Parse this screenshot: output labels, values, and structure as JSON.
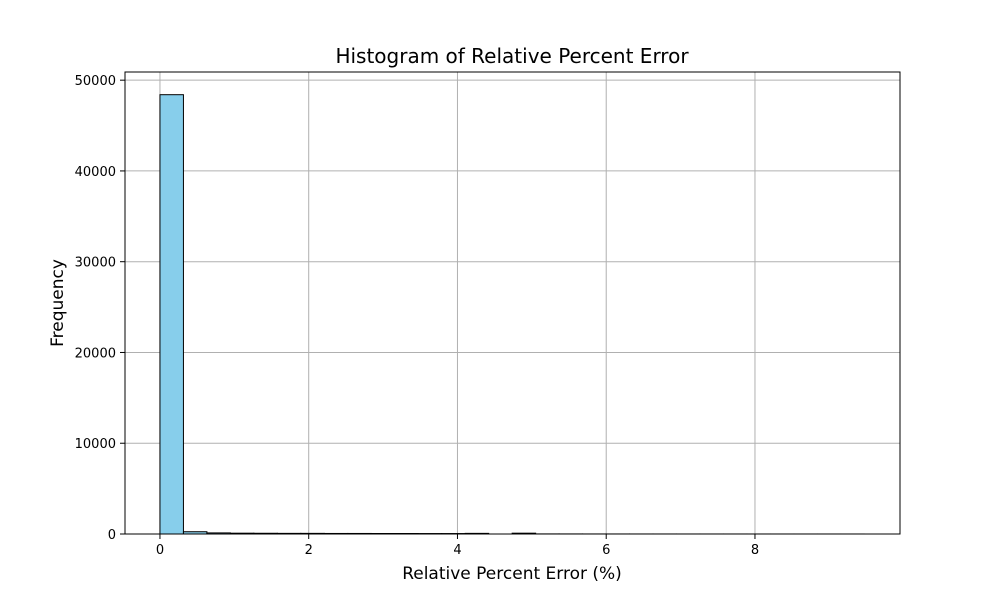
{
  "chart_data": {
    "type": "bar",
    "title": "Histogram of Relative Percent Error",
    "xlabel": "Relative Percent Error (%)",
    "ylabel": "Frequency",
    "xlim": [
      -0.47,
      9.95
    ],
    "ylim": [
      0,
      50900
    ],
    "xticks": [
      0,
      2,
      4,
      6,
      8
    ],
    "yticks": [
      0,
      10000,
      20000,
      30000,
      40000,
      50000
    ],
    "grid": true,
    "bar_color": "#87CEEB",
    "edge_color": "#000000",
    "bin_width": 0.3157,
    "bins": [
      {
        "x0": 0.0,
        "count": 48400
      },
      {
        "x0": 0.3157,
        "count": 250
      },
      {
        "x0": 0.6314,
        "count": 120
      },
      {
        "x0": 0.9471,
        "count": 90
      },
      {
        "x0": 1.2628,
        "count": 80
      },
      {
        "x0": 1.5785,
        "count": 70
      },
      {
        "x0": 1.8942,
        "count": 70
      },
      {
        "x0": 2.2099,
        "count": 60
      },
      {
        "x0": 2.5256,
        "count": 60
      },
      {
        "x0": 2.8413,
        "count": 55
      },
      {
        "x0": 3.157,
        "count": 55
      },
      {
        "x0": 3.4727,
        "count": 50
      },
      {
        "x0": 3.7884,
        "count": 50
      },
      {
        "x0": 4.1041,
        "count": 70
      },
      {
        "x0": 4.4198,
        "count": 0
      },
      {
        "x0": 4.7355,
        "count": 90
      },
      {
        "x0": 5.0512,
        "count": 10
      },
      {
        "x0": 5.3669,
        "count": 8
      },
      {
        "x0": 5.6826,
        "count": 6
      },
      {
        "x0": 5.9983,
        "count": 5
      },
      {
        "x0": 6.314,
        "count": 4
      },
      {
        "x0": 6.6297,
        "count": 4
      },
      {
        "x0": 6.9454,
        "count": 3
      },
      {
        "x0": 7.2611,
        "count": 3
      },
      {
        "x0": 7.5768,
        "count": 3
      },
      {
        "x0": 7.8925,
        "count": 2
      },
      {
        "x0": 8.2082,
        "count": 2
      },
      {
        "x0": 8.5239,
        "count": 2
      },
      {
        "x0": 8.8396,
        "count": 2
      },
      {
        "x0": 9.1553,
        "count": 2
      }
    ]
  }
}
